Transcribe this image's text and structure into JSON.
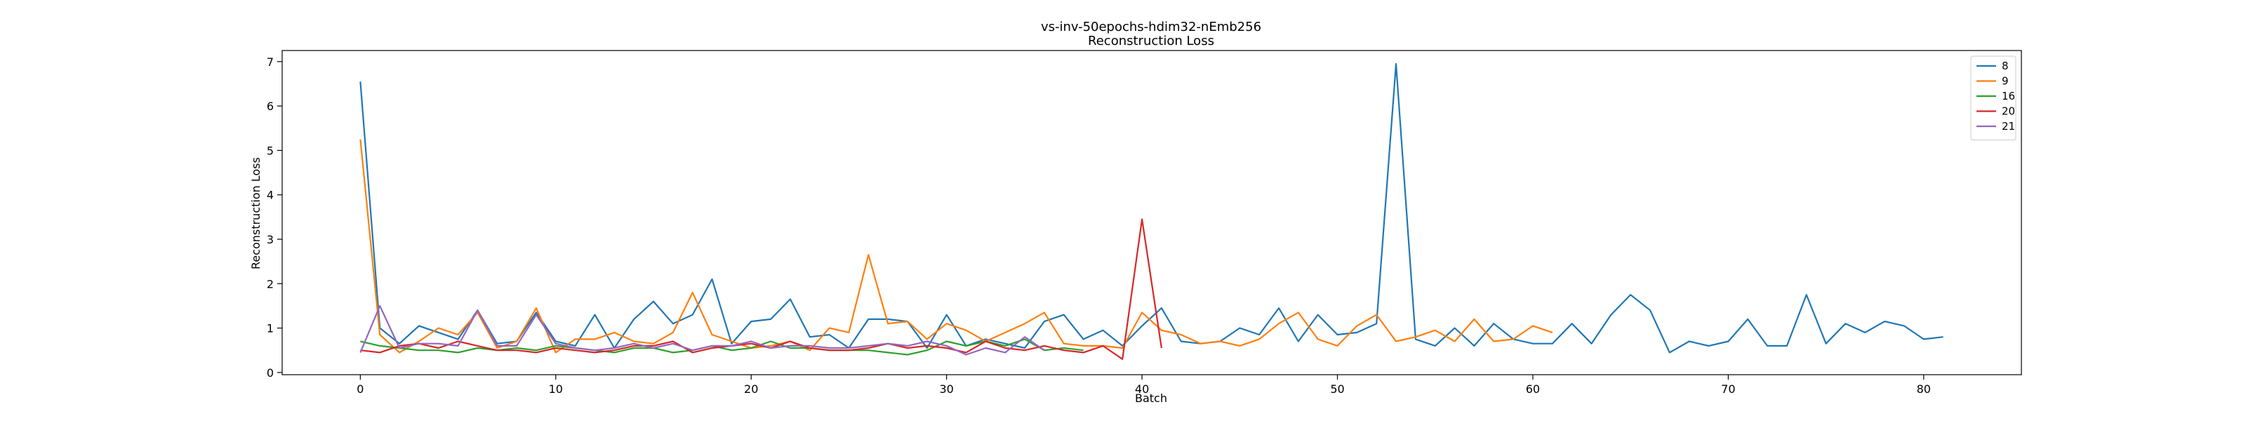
{
  "chart_data": {
    "type": "line",
    "title": "vs-inv-50epochs-hdim32-nEmb256",
    "subtitle": "Reconstruction Loss",
    "xlabel": "Batch",
    "ylabel": "Reconstruction Loss",
    "xlim": [
      -4,
      85
    ],
    "ylim": [
      -0.05,
      7.25
    ],
    "xticks": [
      0,
      10,
      20,
      30,
      40,
      50,
      60,
      70,
      80
    ],
    "yticks": [
      0,
      1,
      2,
      3,
      4,
      5,
      6,
      7
    ],
    "grid": false,
    "legend": "top-right",
    "colors": [
      "#1f77b4",
      "#ff7f0e",
      "#2ca02c",
      "#d62728",
      "#9467bd"
    ],
    "series": [
      {
        "name": "8",
        "values": [
          6.55,
          1.0,
          0.65,
          1.05,
          0.9,
          0.75,
          1.4,
          0.65,
          0.7,
          1.35,
          0.7,
          0.6,
          1.3,
          0.55,
          1.2,
          1.6,
          1.1,
          1.3,
          2.1,
          0.65,
          1.15,
          1.2,
          1.65,
          0.8,
          0.85,
          0.55,
          1.2,
          1.2,
          1.15,
          0.55,
          1.3,
          0.6,
          0.75,
          0.65,
          0.55,
          1.15,
          1.3,
          0.75,
          0.95,
          0.6,
          1.05,
          1.45,
          0.7,
          0.65,
          0.7,
          1.0,
          0.85,
          1.45,
          0.7,
          1.3,
          0.85,
          0.9,
          1.1,
          6.95,
          0.75,
          0.6,
          1.0,
          0.6,
          1.1,
          0.75,
          0.65,
          0.65,
          1.1,
          0.65,
          1.3,
          1.75,
          1.4,
          0.45,
          0.7,
          0.6,
          0.7,
          1.2,
          0.6,
          0.6,
          1.75,
          0.65,
          1.1,
          0.9,
          1.15,
          1.05,
          0.75,
          0.8
        ]
      },
      {
        "name": "9",
        "values": [
          5.25,
          0.85,
          0.45,
          0.7,
          1.0,
          0.85,
          1.35,
          0.55,
          0.7,
          1.45,
          0.45,
          0.75,
          0.75,
          0.9,
          0.7,
          0.65,
          0.9,
          1.8,
          0.85,
          0.7,
          0.55,
          0.6,
          0.7,
          0.5,
          1.0,
          0.9,
          2.65,
          1.1,
          1.15,
          0.75,
          1.1,
          0.95,
          0.7,
          0.9,
          1.1,
          1.35,
          0.65,
          0.6,
          0.6,
          0.55,
          1.35,
          0.95,
          0.85,
          0.65,
          0.7,
          0.6,
          0.75,
          1.1,
          1.35,
          0.75,
          0.6,
          1.05,
          1.3,
          0.7,
          0.8,
          0.95,
          0.7,
          1.2,
          0.7,
          0.75,
          1.05,
          0.9
        ]
      },
      {
        "name": "16",
        "values": [
          0.7,
          0.6,
          0.55,
          0.5,
          0.5,
          0.45,
          0.55,
          0.5,
          0.55,
          0.5,
          0.6,
          0.55,
          0.5,
          0.45,
          0.55,
          0.55,
          0.45,
          0.5,
          0.6,
          0.5,
          0.55,
          0.7,
          0.55,
          0.55,
          0.5,
          0.5,
          0.5,
          0.45,
          0.4,
          0.5,
          0.7,
          0.6,
          0.7,
          0.6,
          0.75,
          0.5,
          0.55,
          0.5
        ]
      },
      {
        "name": "20",
        "values": [
          0.5,
          0.45,
          0.6,
          0.65,
          0.55,
          0.7,
          0.6,
          0.5,
          0.5,
          0.45,
          0.55,
          0.5,
          0.45,
          0.5,
          0.6,
          0.6,
          0.7,
          0.45,
          0.55,
          0.6,
          0.65,
          0.55,
          0.7,
          0.55,
          0.5,
          0.5,
          0.55,
          0.65,
          0.55,
          0.6,
          0.55,
          0.45,
          0.7,
          0.55,
          0.5,
          0.6,
          0.5,
          0.45,
          0.6,
          0.3,
          3.45,
          0.55
        ]
      },
      {
        "name": "21",
        "values": [
          0.45,
          1.5,
          0.55,
          0.65,
          0.65,
          0.6,
          1.4,
          0.6,
          0.6,
          1.3,
          0.65,
          0.55,
          0.5,
          0.55,
          0.65,
          0.55,
          0.65,
          0.5,
          0.6,
          0.6,
          0.7,
          0.55,
          0.6,
          0.6,
          0.55,
          0.55,
          0.6,
          0.65,
          0.6,
          0.7,
          0.6,
          0.4,
          0.55,
          0.45,
          0.8,
          0.5
        ]
      }
    ]
  }
}
